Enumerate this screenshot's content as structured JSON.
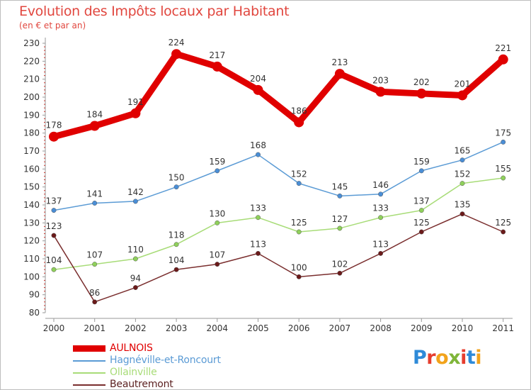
{
  "title": "Evolution des Impôts locaux par Habitant",
  "subtitle": "(en € et par an)",
  "logo_text": "Proxiti",
  "logo_colors": [
    "#2e8ad8",
    "#e63d2e",
    "#f2a31b",
    "#7fb539",
    "#e63d2e",
    "#2e8ad8",
    "#f2a31b"
  ],
  "chart_data": {
    "type": "line",
    "x": [
      "2000",
      "2001",
      "2002",
      "2003",
      "2004",
      "2005",
      "2006",
      "2007",
      "2008",
      "2009",
      "2010",
      "2011"
    ],
    "ylim": [
      80,
      230
    ],
    "yticks": [
      80,
      90,
      100,
      110,
      120,
      130,
      140,
      150,
      160,
      170,
      180,
      190,
      200,
      210,
      220,
      230
    ],
    "grid": false,
    "legend_position": "bottom-left",
    "series": [
      {
        "name": "AULNOIS",
        "values": [
          178,
          184,
          191,
          224,
          217,
          204,
          186,
          213,
          203,
          202,
          201,
          221
        ],
        "color": "#e00000",
        "emphasis": true
      },
      {
        "name": "Hagnéville-et-Roncourt",
        "values": [
          137,
          141,
          142,
          150,
          159,
          168,
          152,
          145,
          146,
          159,
          165,
          175
        ],
        "color": "#5b9bd5",
        "marker": "#4a8ed6"
      },
      {
        "name": "Ollainville",
        "values": [
          104,
          107,
          110,
          118,
          130,
          133,
          125,
          127,
          133,
          137,
          152,
          155
        ],
        "color": "#a8dc78",
        "marker": "#8fd05b"
      },
      {
        "name": "Beautremont",
        "values": [
          123,
          86,
          94,
          104,
          107,
          113,
          100,
          102,
          113,
          125,
          135,
          125
        ],
        "color": "#7a2e2e",
        "marker": "#6b1a1a"
      }
    ]
  }
}
